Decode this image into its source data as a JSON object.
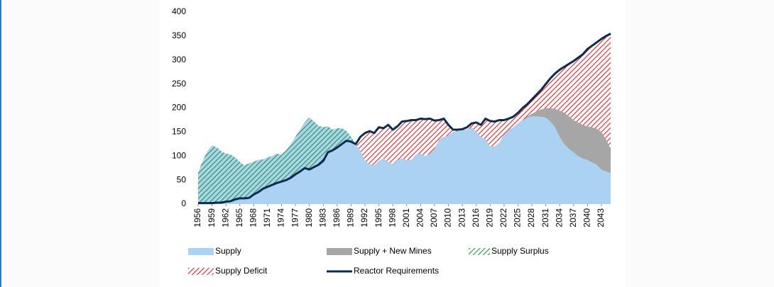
{
  "chart_data": {
    "type": "area",
    "x": [
      1956,
      1957,
      1958,
      1959,
      1960,
      1961,
      1962,
      1963,
      1964,
      1965,
      1966,
      1967,
      1968,
      1969,
      1970,
      1971,
      1972,
      1973,
      1974,
      1975,
      1976,
      1977,
      1978,
      1979,
      1980,
      1981,
      1982,
      1983,
      1984,
      1985,
      1986,
      1987,
      1988,
      1989,
      1990,
      1991,
      1992,
      1993,
      1994,
      1995,
      1996,
      1997,
      1998,
      1999,
      2000,
      2001,
      2002,
      2003,
      2004,
      2005,
      2006,
      2007,
      2008,
      2009,
      2010,
      2011,
      2012,
      2013,
      2014,
      2015,
      2016,
      2017,
      2018,
      2019,
      2020,
      2021,
      2022,
      2023,
      2024,
      2025,
      2026,
      2027,
      2028,
      2029,
      2030,
      2031,
      2032,
      2033,
      2034,
      2035,
      2036,
      2037,
      2038,
      2039,
      2040,
      2041,
      2042,
      2043,
      2044,
      2045
    ],
    "xlim": [
      1956,
      2045
    ],
    "xticks": [
      1956,
      1959,
      1962,
      1965,
      1968,
      1971,
      1974,
      1977,
      1980,
      1983,
      1986,
      1989,
      1992,
      1995,
      1998,
      2001,
      2004,
      2007,
      2010,
      2013,
      2016,
      2019,
      2022,
      2025,
      2028,
      2031,
      2034,
      2037,
      2040,
      2043
    ],
    "ylim": [
      0,
      400
    ],
    "yticks": [
      0,
      50,
      100,
      150,
      200,
      250,
      300,
      350,
      400
    ],
    "series": [
      {
        "name": "Supply + New Mines",
        "color": "#a6a6a6",
        "style": "area",
        "values": [
          65,
          90,
          110,
          122,
          118,
          110,
          105,
          103,
          97,
          88,
          80,
          85,
          88,
          92,
          93,
          97,
          100,
          105,
          103,
          112,
          125,
          140,
          155,
          170,
          180,
          172,
          163,
          160,
          162,
          155,
          158,
          158,
          152,
          140,
          125,
          110,
          90,
          83,
          80,
          90,
          95,
          88,
          82,
          92,
          95,
          92,
          92,
          103,
          105,
          100,
          105,
          115,
          135,
          140,
          143,
          150,
          152,
          155,
          155,
          160,
          150,
          140,
          135,
          120,
          120,
          128,
          145,
          155,
          160,
          168,
          175,
          182,
          188,
          193,
          197,
          200,
          200,
          198,
          195,
          190,
          183,
          175,
          170,
          165,
          162,
          160,
          157,
          150,
          135,
          115
        ]
      },
      {
        "name": "Supply",
        "color": "#abd2f0",
        "style": "area",
        "values": [
          65,
          90,
          110,
          122,
          118,
          110,
          105,
          103,
          97,
          88,
          80,
          85,
          88,
          92,
          93,
          97,
          100,
          105,
          103,
          112,
          125,
          140,
          155,
          170,
          180,
          172,
          163,
          160,
          162,
          155,
          158,
          158,
          152,
          140,
          125,
          110,
          90,
          83,
          80,
          90,
          95,
          88,
          82,
          92,
          95,
          92,
          92,
          103,
          105,
          100,
          105,
          115,
          135,
          140,
          143,
          150,
          152,
          155,
          155,
          160,
          150,
          140,
          135,
          120,
          120,
          128,
          145,
          155,
          160,
          168,
          175,
          180,
          183,
          183,
          182,
          180,
          172,
          160,
          140,
          125,
          115,
          108,
          100,
          95,
          92,
          87,
          82,
          72,
          68,
          65
        ]
      },
      {
        "name": "Reactor Requirements",
        "color": "#0d2b4e",
        "style": "line",
        "values": [
          2,
          2,
          2,
          2,
          3,
          3,
          5,
          6,
          10,
          12,
          12,
          13,
          20,
          25,
          32,
          36,
          40,
          44,
          47,
          50,
          55,
          62,
          68,
          75,
          72,
          77,
          82,
          90,
          108,
          112,
          118,
          125,
          132,
          130,
          125,
          140,
          148,
          152,
          148,
          160,
          158,
          165,
          155,
          162,
          172,
          173,
          175,
          175,
          178,
          177,
          178,
          174,
          175,
          178,
          165,
          155,
          155,
          156,
          160,
          168,
          170,
          165,
          178,
          173,
          172,
          175,
          175,
          178,
          182,
          190,
          200,
          208,
          218,
          228,
          238,
          250,
          262,
          272,
          280,
          286,
          292,
          298,
          305,
          312,
          323,
          330,
          337,
          344,
          350,
          355
        ]
      }
    ],
    "fills": [
      {
        "name": "Supply Surplus",
        "color": "#1f9a3a"
      },
      {
        "name": "Supply Deficit",
        "color": "#e02424"
      }
    ]
  }
}
